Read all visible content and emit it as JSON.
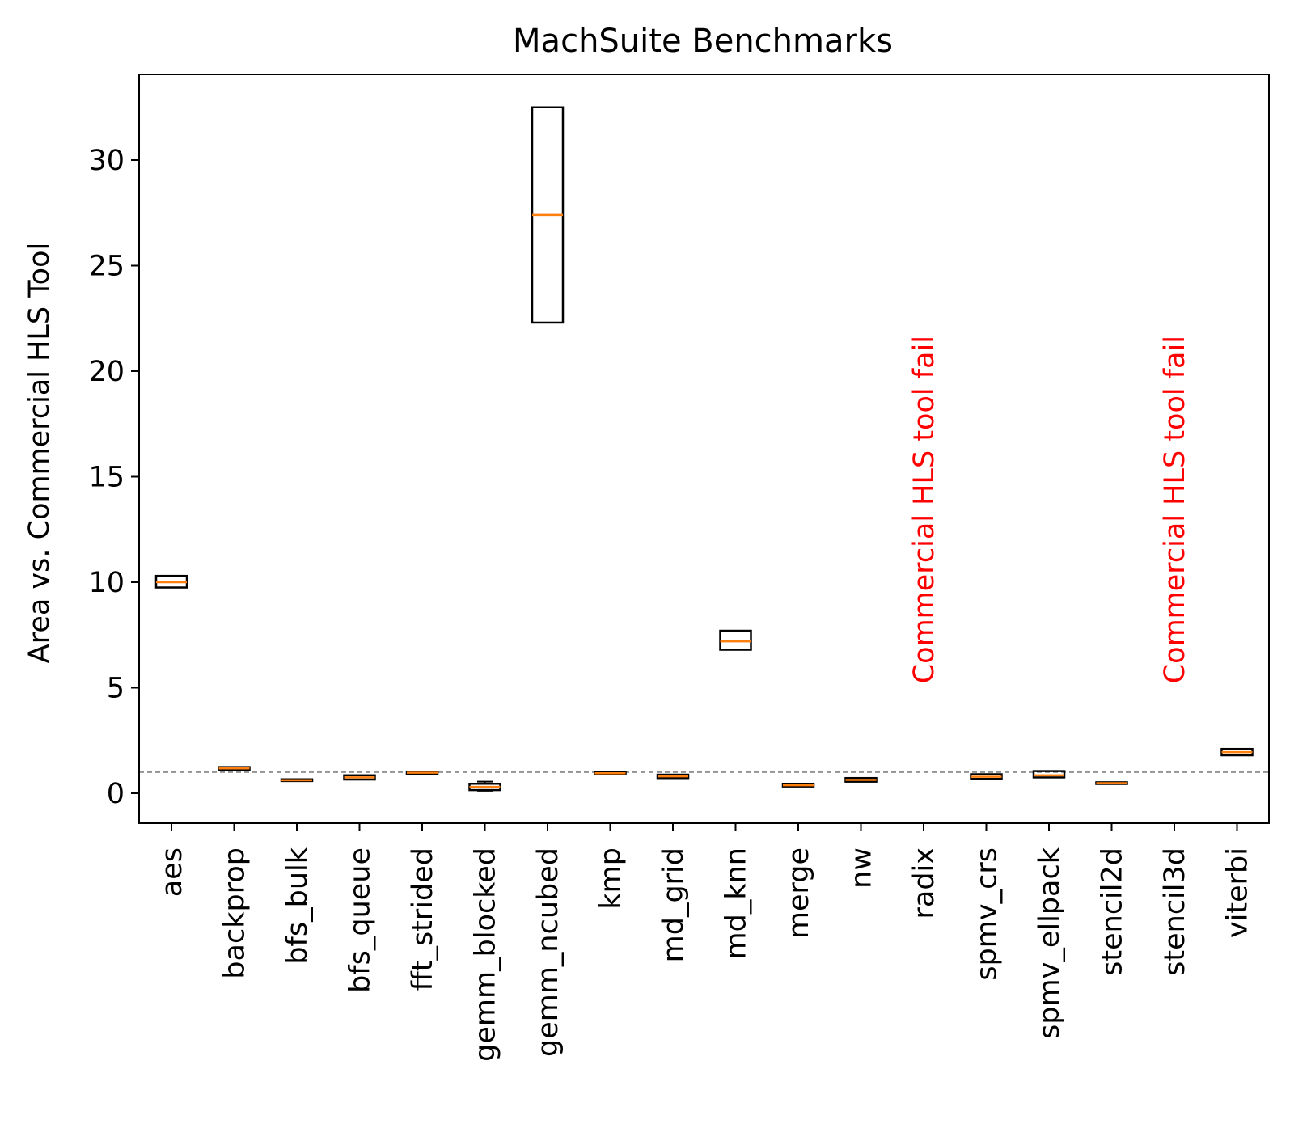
{
  "chart_data": {
    "type": "box",
    "title": "MachSuite Benchmarks",
    "xlabel": "",
    "ylabel": "Area vs. Commercial HLS Tool",
    "ylim": [
      -1.4,
      34.1
    ],
    "yticks": [
      0,
      5,
      10,
      15,
      20,
      25,
      30
    ],
    "grid": false,
    "reference_line": {
      "y": 1.0,
      "style": "dashed",
      "color": "#808080"
    },
    "categories": [
      "aes",
      "backprop",
      "bfs_bulk",
      "bfs_queue",
      "fft_strided",
      "gemm_blocked",
      "gemm_ncubed",
      "kmp",
      "md_grid",
      "md_knn",
      "merge",
      "nw",
      "radix",
      "spmv_crs",
      "spmv_ellpack",
      "stencil2d",
      "stencil3d",
      "viterbi"
    ],
    "boxes": [
      {
        "category": "aes",
        "q1": 9.75,
        "median": 10.0,
        "q3": 10.3,
        "whisker_low": 9.75,
        "whisker_high": 10.3
      },
      {
        "category": "backprop",
        "q1": 1.12,
        "median": 1.18,
        "q3": 1.24,
        "whisker_low": 1.12,
        "whisker_high": 1.24
      },
      {
        "category": "bfs_bulk",
        "q1": 0.58,
        "median": 0.62,
        "q3": 0.66,
        "whisker_low": 0.58,
        "whisker_high": 0.66
      },
      {
        "category": "bfs_queue",
        "q1": 0.65,
        "median": 0.75,
        "q3": 0.85,
        "whisker_low": 0.65,
        "whisker_high": 0.85
      },
      {
        "category": "fft_strided",
        "q1": 0.94,
        "median": 0.97,
        "q3": 1.0,
        "whisker_low": 0.94,
        "whisker_high": 1.0
      },
      {
        "category": "gemm_blocked",
        "q1": 0.15,
        "median": 0.3,
        "q3": 0.45,
        "whisker_low": 0.12,
        "whisker_high": 0.55
      },
      {
        "category": "gemm_ncubed",
        "q1": 22.3,
        "median": 27.4,
        "q3": 32.5,
        "whisker_low": 22.3,
        "whisker_high": 32.5
      },
      {
        "category": "kmp",
        "q1": 0.9,
        "median": 0.95,
        "q3": 1.0,
        "whisker_low": 0.9,
        "whisker_high": 1.0
      },
      {
        "category": "md_grid",
        "q1": 0.72,
        "median": 0.8,
        "q3": 0.88,
        "whisker_low": 0.72,
        "whisker_high": 0.88
      },
      {
        "category": "md_knn",
        "q1": 6.8,
        "median": 7.2,
        "q3": 7.7,
        "whisker_low": 6.8,
        "whisker_high": 7.7
      },
      {
        "category": "merge",
        "q1": 0.32,
        "median": 0.38,
        "q3": 0.45,
        "whisker_low": 0.32,
        "whisker_high": 0.45
      },
      {
        "category": "nw",
        "q1": 0.55,
        "median": 0.63,
        "q3": 0.72,
        "whisker_low": 0.55,
        "whisker_high": 0.72
      },
      {
        "category": "radix",
        "failed": true
      },
      {
        "category": "spmv_crs",
        "q1": 0.68,
        "median": 0.78,
        "q3": 0.9,
        "whisker_low": 0.68,
        "whisker_high": 0.9
      },
      {
        "category": "spmv_ellpack",
        "q1": 0.75,
        "median": 0.85,
        "q3": 1.05,
        "whisker_low": 0.75,
        "whisker_high": 1.05
      },
      {
        "category": "stencil2d",
        "q1": 0.44,
        "median": 0.48,
        "q3": 0.52,
        "whisker_low": 0.44,
        "whisker_high": 0.52
      },
      {
        "category": "stencil3d",
        "failed": true
      },
      {
        "category": "viterbi",
        "q1": 1.8,
        "median": 1.95,
        "q3": 2.1,
        "whisker_low": 1.8,
        "whisker_high": 2.1
      }
    ],
    "annotations": [
      {
        "category": "radix",
        "text": "Commercial HLS tool fail",
        "color": "#ff0000"
      },
      {
        "category": "stencil3d",
        "text": "Commercial HLS tool fail",
        "color": "#ff0000"
      }
    ],
    "colors": {
      "box": "#000000",
      "median": "#ff7f0e",
      "reference": "#808080",
      "annotation": "#ff0000"
    }
  }
}
